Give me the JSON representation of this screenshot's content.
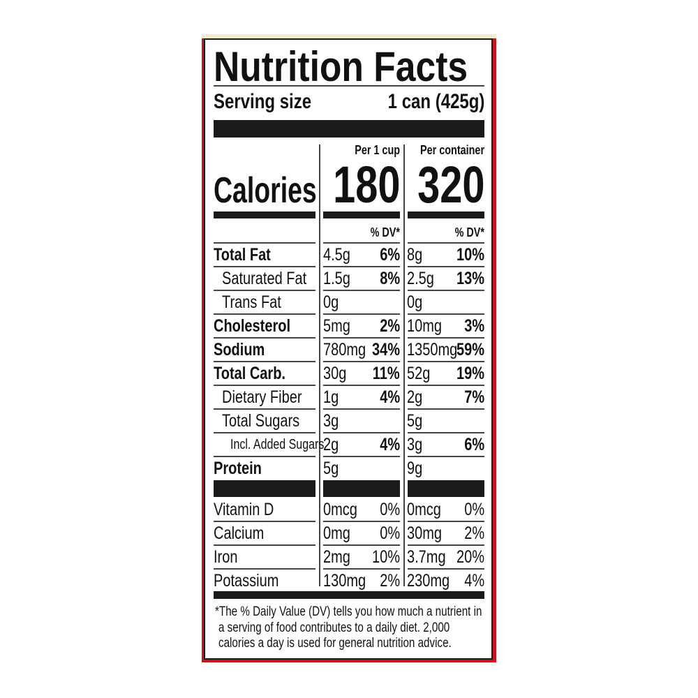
{
  "title": "Nutrition Facts",
  "serving": {
    "label": "Serving size",
    "value": "1 can (425g)"
  },
  "calories": {
    "label": "Calories",
    "per_cup_label": "Per 1 cup",
    "per_cup": "180",
    "per_container_label": "Per container",
    "per_container": "320"
  },
  "dv_header": "% DV*",
  "nutrients": [
    {
      "name": "Total Fat",
      "bold": true,
      "indent": 0,
      "cup_amt": "4.5g",
      "cup_dv": "6%",
      "cont_amt": "8g",
      "cont_dv": "10%"
    },
    {
      "name": "Saturated Fat",
      "bold": false,
      "indent": 1,
      "cup_amt": "1.5g",
      "cup_dv": "8%",
      "cont_amt": "2.5g",
      "cont_dv": "13%"
    },
    {
      "name": "Trans Fat",
      "bold": false,
      "indent": 1,
      "cup_amt": "0g",
      "cup_dv": "",
      "cont_amt": "0g",
      "cont_dv": ""
    },
    {
      "name": "Cholesterol",
      "bold": true,
      "indent": 0,
      "cup_amt": "5mg",
      "cup_dv": "2%",
      "cont_amt": "10mg",
      "cont_dv": "3%"
    },
    {
      "name": "Sodium",
      "bold": true,
      "indent": 0,
      "cup_amt": "780mg",
      "cup_dv": "34%",
      "cont_amt": "1350mg",
      "cont_dv": "59%"
    },
    {
      "name": "Total Carb.",
      "bold": true,
      "indent": 0,
      "cup_amt": "30g",
      "cup_dv": "11%",
      "cont_amt": "52g",
      "cont_dv": "19%"
    },
    {
      "name": "Dietary Fiber",
      "bold": false,
      "indent": 1,
      "cup_amt": "1g",
      "cup_dv": "4%",
      "cont_amt": "2g",
      "cont_dv": "7%"
    },
    {
      "name": "Total Sugars",
      "bold": false,
      "indent": 1,
      "cup_amt": "3g",
      "cup_dv": "",
      "cont_amt": "5g",
      "cont_dv": ""
    },
    {
      "name": "Incl. Added Sugars",
      "bold": false,
      "indent": 2,
      "cup_amt": "2g",
      "cup_dv": "4%",
      "cont_amt": "3g",
      "cont_dv": "6%"
    },
    {
      "name": "Protein",
      "bold": true,
      "indent": 0,
      "cup_amt": "5g",
      "cup_dv": "",
      "cont_amt": "9g",
      "cont_dv": ""
    }
  ],
  "vitamins": [
    {
      "name": "Vitamin D",
      "cup_amt": "0mcg",
      "cup_dv": "0%",
      "cont_amt": "0mcg",
      "cont_dv": "0%"
    },
    {
      "name": "Calcium",
      "cup_amt": "0mg",
      "cup_dv": "0%",
      "cont_amt": "30mg",
      "cont_dv": "2%"
    },
    {
      "name": "Iron",
      "cup_amt": "2mg",
      "cup_dv": "10%",
      "cont_amt": "3.7mg",
      "cont_dv": "20%"
    },
    {
      "name": "Potassium",
      "cup_amt": "130mg",
      "cup_dv": "2%",
      "cont_amt": "230mg",
      "cont_dv": "4%"
    }
  ],
  "footnote": [
    "*The % Daily Value (DV) tells you how much a nutrient in",
    "a serving of food contributes to a daily diet. 2,000",
    "calories a day is used for general nutrition advice."
  ],
  "colors": {
    "border_accent": "#c8141b",
    "ink": "#1a1a1a"
  }
}
